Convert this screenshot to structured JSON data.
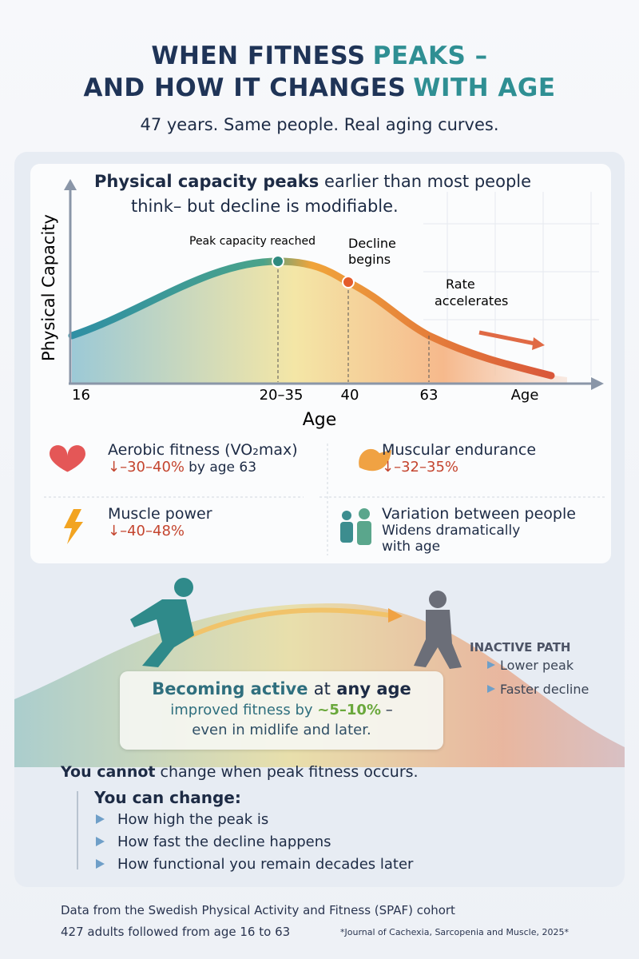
{
  "header": {
    "title_line1": [
      "WHEN FITNESS",
      "PEAKS –"
    ],
    "title_line2": [
      "AND HOW IT CHANGES",
      "WITH AGE"
    ],
    "subtitle": "47 years. Same people. Real aging curves."
  },
  "curve_panel": {
    "heading_parts": [
      "Physical capacity peaks",
      "earlier than most people",
      "think– but decline is modifiable."
    ],
    "y_axis_label": "Physical Capacity",
    "x_labels": [
      "16",
      "20–35",
      "40",
      "63",
      "Age"
    ],
    "x_axis_title": "Age",
    "annotations": [
      "Peak capacity reached",
      "Decline",
      "begins",
      "Rate",
      "accelerates"
    ]
  },
  "stats": [
    {
      "title": "Aerobic fitness (VO₂max)",
      "change": "↓–30–40%",
      "note": "by age 63"
    },
    {
      "title": "Muscular endurance",
      "change": "↓–32–35%"
    },
    {
      "title": "Muscle power",
      "change": "↓–40–48%"
    },
    {
      "title": "Variation between people",
      "change": "Widens dramatically",
      "note": "with age"
    }
  ],
  "activity": {
    "inactive_title": "INACTIVE PATH",
    "inactive_points": [
      "Lower peak",
      "Faster decline"
    ],
    "box_line1": [
      "Becoming active",
      "at",
      "any age"
    ],
    "box_line2": [
      "improved fitness by",
      "~5–10%",
      "–"
    ],
    "box_line3": "even in midlife and later."
  },
  "takeaways": {
    "cannot": [
      "You cannot",
      "change when peak fitness occurs."
    ],
    "can_title": "You can change:",
    "items": [
      "How high the peak is",
      "How fast the decline happens",
      "How functional you remain decades later"
    ]
  },
  "footer": {
    "line1": "Data from the Swedish Physical Activity and Fitness (SPAF) cohort",
    "line2": "427 adults followed from age 16 to 63",
    "citation": "*Journal of Cachexia, Sarcopenia and Muscle, 2025*"
  }
}
